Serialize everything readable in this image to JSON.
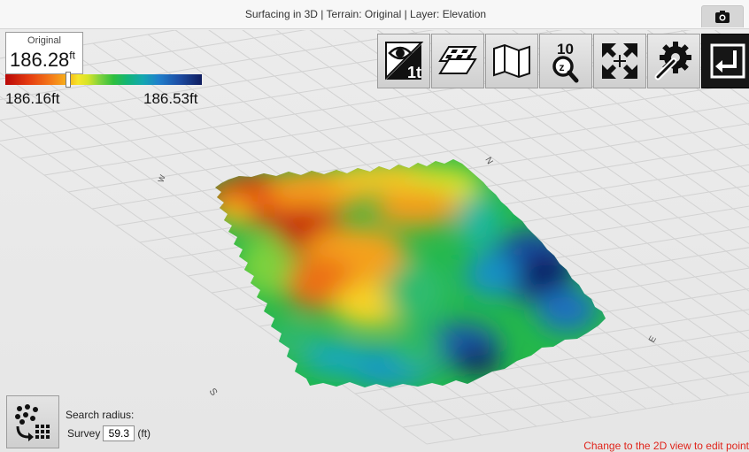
{
  "window": {
    "title": "Surfacing in 3D | Terrain: Original | Layer: Elevation"
  },
  "legend": {
    "label": "Original",
    "value": "186.28",
    "unit": "ft",
    "min": "186.16ft",
    "max": "186.53ft",
    "marker_fraction": 0.32,
    "gradient_colors": [
      "#b90808",
      "#f57f1a",
      "#f6e62a",
      "#2fbf3e",
      "#13a7b0",
      "#1e4fa6",
      "#0f1c5e"
    ]
  },
  "toolbar": {
    "buttons": [
      {
        "name": "visibility-toggle-button",
        "icon": "eye-text-icon"
      },
      {
        "name": "layers-button",
        "icon": "layers-grid-icon"
      },
      {
        "name": "map-button",
        "icon": "folded-map-icon"
      },
      {
        "name": "zoom-10-button",
        "icon": "zoom-z-icon",
        "label": "10"
      },
      {
        "name": "fit-extents-button",
        "icon": "expand-arrows-icon"
      },
      {
        "name": "settings-button",
        "icon": "gear-wrench-icon"
      },
      {
        "name": "exit-button",
        "icon": "return-arrow-icon"
      }
    ]
  },
  "compass": {
    "north": "N",
    "south": "S",
    "east": "E",
    "west": "W"
  },
  "search": {
    "title": "Search radius:",
    "label": "Survey",
    "value": "59.3",
    "unit": "(ft)"
  },
  "hint": "Change to the 2D view to edit point"
}
